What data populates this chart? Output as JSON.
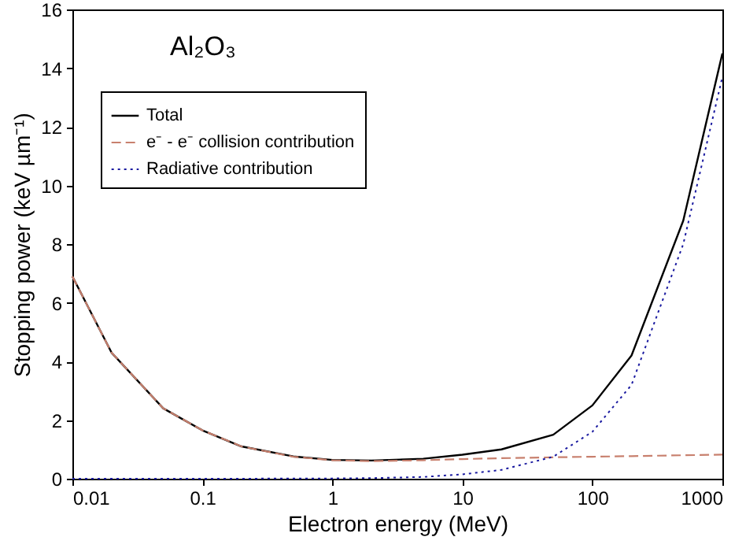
{
  "chart_data": {
    "type": "line",
    "xlabel": "Electron energy (MeV)",
    "ylabel": "Stopping power (keV µm⁻¹)",
    "annotations": [
      "Al₂O₃"
    ],
    "x": [
      0.01,
      0.02,
      0.05,
      0.1,
      0.2,
      0.5,
      1,
      2,
      5,
      10,
      20,
      50,
      100,
      200,
      500,
      1000
    ],
    "series": [
      {
        "name": "Total",
        "color": "#000000",
        "line_style": "solid",
        "values": [
          6.9,
          4.3,
          2.4,
          1.65,
          1.1,
          0.76,
          0.64,
          0.62,
          0.68,
          0.82,
          1.0,
          1.5,
          2.5,
          4.2,
          8.8,
          14.5
        ]
      },
      {
        "name": "e⁻ - e⁻ collision contribution",
        "color": "#c8806e",
        "line_style": "dashed",
        "values": [
          6.9,
          4.3,
          2.4,
          1.65,
          1.1,
          0.75,
          0.63,
          0.6,
          0.63,
          0.67,
          0.7,
          0.73,
          0.75,
          0.77,
          0.8,
          0.82
        ]
      },
      {
        "name": "Radiative contribution",
        "color": "#1a1aa0",
        "line_style": "dotted",
        "values": [
          0,
          0,
          0,
          0,
          0,
          0.01,
          0.01,
          0.02,
          0.06,
          0.15,
          0.3,
          0.75,
          1.6,
          3.2,
          8.0,
          13.7
        ]
      }
    ],
    "log": "x",
    "xlim": [
      0.01,
      1000
    ],
    "xticks": [
      0.01,
      0.1,
      1,
      10,
      100,
      1000
    ],
    "ylim": [
      0,
      16
    ],
    "yticks": [
      0,
      2,
      4,
      6,
      8,
      10,
      12,
      14,
      16
    ],
    "grid": false,
    "legend": "top left",
    "marker": "none"
  }
}
